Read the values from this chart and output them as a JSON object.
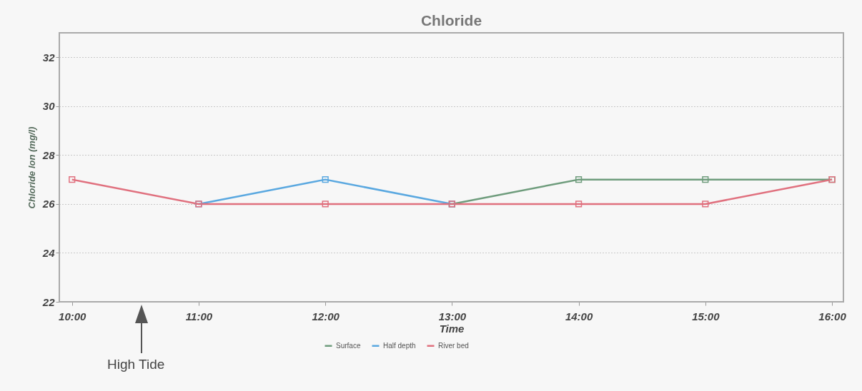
{
  "chart_data": {
    "type": "line",
    "title": "Chloride",
    "xlabel": "Time",
    "ylabel": "Chloride Ion (mg/l)",
    "x": [
      10,
      11,
      12,
      13,
      14,
      15,
      16
    ],
    "xlim": [
      9.9,
      16.09
    ],
    "xticks": [
      {
        "value": 10,
        "label": "10:00"
      },
      {
        "value": 11,
        "label": "11:00"
      },
      {
        "value": 12,
        "label": "12:00"
      },
      {
        "value": 13,
        "label": "13:00"
      },
      {
        "value": 14,
        "label": "14:00"
      },
      {
        "value": 15,
        "label": "15:00"
      },
      {
        "value": 16,
        "label": "16:00"
      }
    ],
    "ylim": [
      22,
      33
    ],
    "yticks": [
      22,
      24,
      26,
      28,
      30,
      32
    ],
    "series": [
      {
        "name": "Surface",
        "color": "#6e9c7c",
        "values": [
          null,
          null,
          null,
          26,
          27,
          27,
          27
        ]
      },
      {
        "name": "Half depth",
        "color": "#5aa8e0",
        "values": [
          null,
          26,
          27,
          26,
          null,
          null,
          null
        ]
      },
      {
        "name": "River bed",
        "color": "#e0707e",
        "values": [
          27,
          26,
          26,
          26,
          26,
          26,
          27
        ]
      }
    ],
    "annotations": [
      "High Tide"
    ],
    "grid": "y",
    "legend": "bottom",
    "marker": "square",
    "line_style": "solid"
  }
}
